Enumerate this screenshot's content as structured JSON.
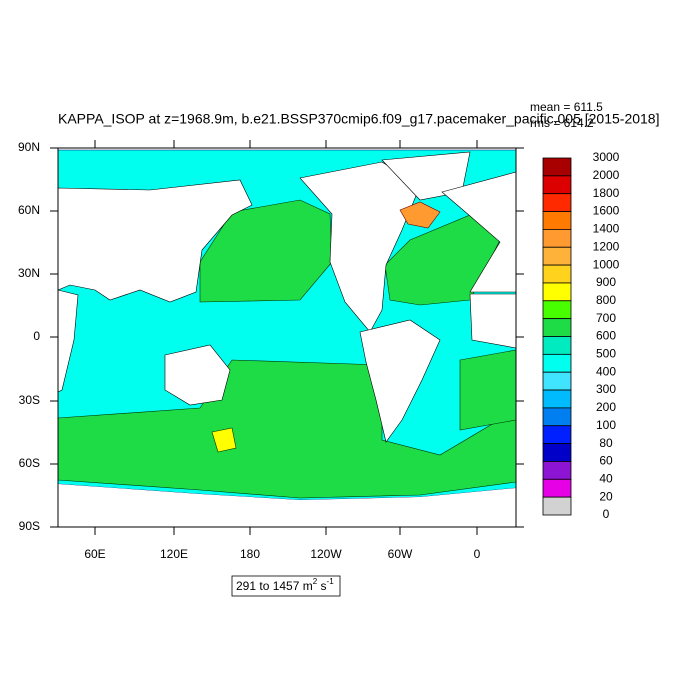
{
  "title": "KAPPA_ISOP at z=1968.9m, b.e21.BSSP370cmip6.f09_g17.pacemaker_pacific.005 [2015-2018]",
  "stats": {
    "mean": "mean = 611.5",
    "rms": "rms = 614.2"
  },
  "lat_ticks": [
    "90N",
    "60N",
    "30N",
    "0",
    "30S",
    "60S",
    "90S"
  ],
  "lon_ticks": [
    "60E",
    "120E",
    "180",
    "120W",
    "60W",
    "0"
  ],
  "colorbar": {
    "levels": [
      3000,
      2000,
      1800,
      1600,
      1400,
      1200,
      1000,
      900,
      800,
      700,
      600,
      500,
      400,
      300,
      200,
      100,
      80,
      60,
      40,
      20,
      0
    ],
    "colors": [
      "#a80000",
      "#dc0000",
      "#ff2a00",
      "#ff7a00",
      "#ff9a30",
      "#ffb23a",
      "#ffd21e",
      "#ffff00",
      "#48ff00",
      "#1edc46",
      "#00ecc0",
      "#00ffee",
      "#40e4ff",
      "#00bcff",
      "#0080f0",
      "#0020ff",
      "#0000c8",
      "#8c14d2",
      "#e600e6",
      "#d2d2d2",
      "#707070"
    ]
  },
  "range": {
    "text": "291 to 1457 m",
    "sup1": "2",
    "mid": " s",
    "sup2": "-1"
  }
}
